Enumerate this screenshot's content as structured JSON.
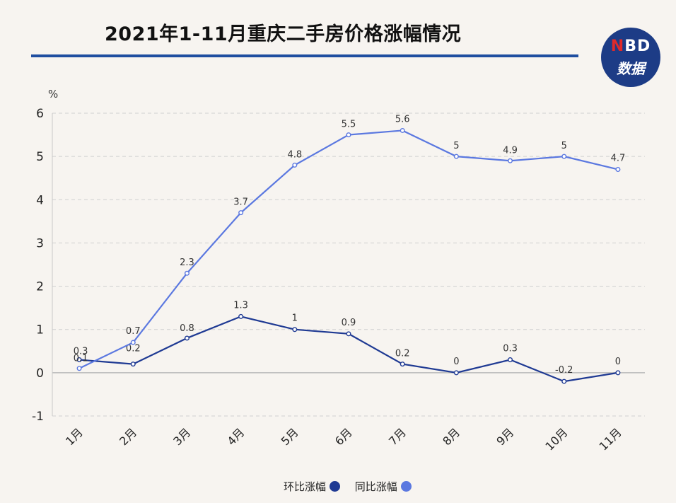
{
  "title": "2021年1-11月重庆二手房价格涨幅情况",
  "logo": {
    "line1_accent": "N",
    "line1_rest": "BD",
    "line2": "数据"
  },
  "chart_data": {
    "type": "line",
    "categories": [
      "1月",
      "2月",
      "3月",
      "4月",
      "5月",
      "6月",
      "7月",
      "8月",
      "9月",
      "10月",
      "11月"
    ],
    "series": [
      {
        "name": "环比涨幅",
        "color": "#1f3a93",
        "values": [
          0.3,
          0.2,
          0.8,
          1.3,
          1,
          0.9,
          0.2,
          0,
          0.3,
          -0.2,
          0
        ]
      },
      {
        "name": "同比涨幅",
        "color": "#5b78e0",
        "values": [
          0.1,
          0.7,
          2.3,
          3.7,
          4.8,
          5.5,
          5.6,
          5,
          4.9,
          5,
          4.7
        ]
      }
    ],
    "ylabel": "%",
    "ylim": [
      -1,
      6
    ],
    "yticks": [
      -1,
      0,
      1,
      2,
      3,
      4,
      5,
      6
    ],
    "grid": true,
    "legend_position": "bottom"
  }
}
